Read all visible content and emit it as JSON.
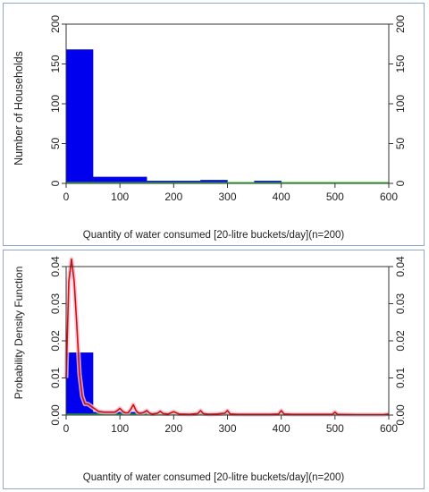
{
  "chart_data": [
    {
      "type": "bar",
      "title": "",
      "xlabel": "Quantity of water consumed [20-litre buckets/day](n=200)",
      "ylabel": "Number of Households",
      "xlim": [
        0,
        600
      ],
      "ylim": [
        0,
        200
      ],
      "x_ticks": [
        "0",
        "100",
        "200",
        "300",
        "400",
        "500",
        "600"
      ],
      "y_ticks": [
        "0",
        "50",
        "100",
        "150",
        "200"
      ],
      "right_y_ticks": [
        "0",
        "50",
        "100",
        "150",
        "200"
      ],
      "bins": [
        {
          "x0": 0,
          "x1": 50,
          "value": 168
        },
        {
          "x0": 50,
          "x1": 150,
          "value": 8
        },
        {
          "x0": 150,
          "x1": 250,
          "value": 3
        },
        {
          "x0": 250,
          "x1": 300,
          "value": 4
        },
        {
          "x0": 350,
          "x1": 400,
          "value": 3
        }
      ],
      "baseline_color": "#22cc22",
      "bar_color": "#0000ee",
      "grid": false
    },
    {
      "type": "bar",
      "title": "",
      "xlabel": "Quantity of water consumed [20-litre buckets/day](n=200)",
      "ylabel": "Probability Density Function",
      "xlim": [
        0,
        600
      ],
      "ylim": [
        0,
        0.04
      ],
      "x_ticks": [
        "0",
        "100",
        "200",
        "300",
        "400",
        "500",
        "600"
      ],
      "y_ticks": [
        "0.00",
        "0.01",
        "0.02",
        "0.03",
        "0.04"
      ],
      "right_y_ticks": [
        "0.00",
        "0.01",
        "0.02",
        "0.03",
        "0.04"
      ],
      "bins": [
        {
          "x0": 0,
          "x1": 50,
          "value": 0.0168
        },
        {
          "x0": 50,
          "x1": 150,
          "value": 0.0008
        },
        {
          "x0": 150,
          "x1": 250,
          "value": 0.0003
        },
        {
          "x0": 250,
          "x1": 300,
          "value": 0.0004
        }
      ],
      "density_curve": {
        "x": [
          0,
          5,
          10,
          15,
          20,
          25,
          30,
          35,
          40,
          45,
          50,
          60,
          70,
          80,
          90,
          95,
          100,
          105,
          110,
          115,
          120,
          125,
          130,
          135,
          140,
          145,
          150,
          155,
          160,
          170,
          175,
          180,
          190,
          200,
          210,
          230,
          245,
          250,
          255,
          265,
          280,
          295,
          300,
          305,
          320,
          350,
          380,
          395,
          400,
          405,
          420,
          460,
          495,
          500,
          505,
          540,
          590,
          600
        ],
        "y": [
          0.01,
          0.036,
          0.042,
          0.036,
          0.024,
          0.011,
          0.005,
          0.003,
          0.003,
          0.0025,
          0.002,
          0.001,
          0.0008,
          0.0008,
          0.0008,
          0.0012,
          0.0018,
          0.001,
          0.0006,
          0.0006,
          0.0015,
          0.0028,
          0.0012,
          0.0005,
          0.0005,
          0.0008,
          0.0012,
          0.0005,
          0.0003,
          0.0005,
          0.001,
          0.0004,
          0.0003,
          0.0009,
          0.0003,
          0.0002,
          0.0004,
          0.0012,
          0.0004,
          0.0002,
          0.0003,
          0.0005,
          0.0012,
          0.0003,
          0.0002,
          0.0002,
          0.0002,
          0.0003,
          0.0012,
          0.0003,
          0.0002,
          0.0002,
          0.0002,
          0.0008,
          0.0002,
          0.0001,
          0.0001,
          0.0003
        ],
        "color": "#cc1111",
        "halo_color": "#f4bcd0"
      },
      "baseline_color": "#22cc22",
      "bar_color": "#0000ee",
      "grid": false
    }
  ]
}
